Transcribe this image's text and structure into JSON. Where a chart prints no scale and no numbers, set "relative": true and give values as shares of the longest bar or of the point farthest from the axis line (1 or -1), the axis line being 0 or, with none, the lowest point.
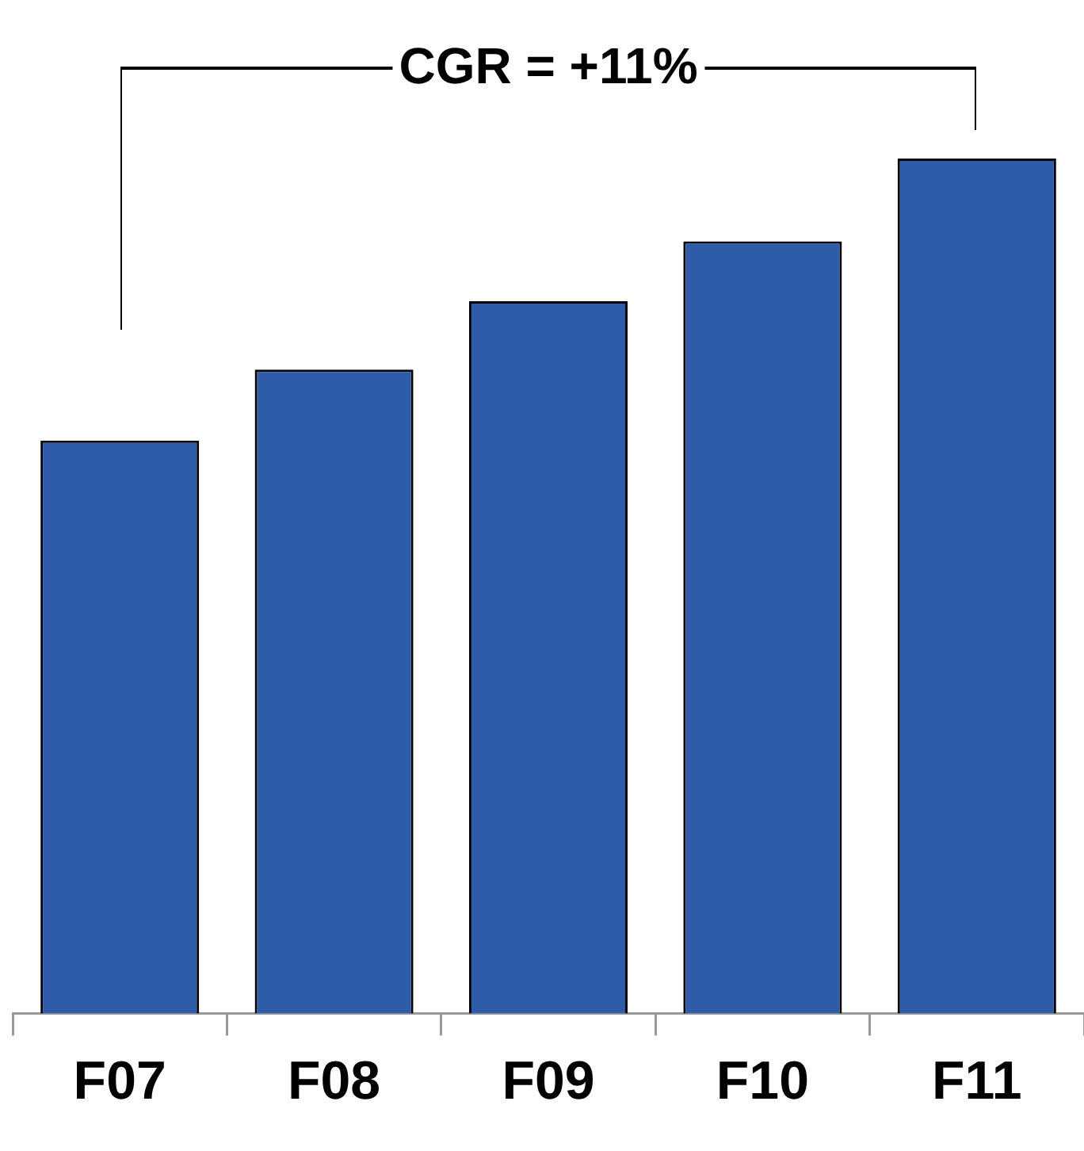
{
  "chart_data": {
    "type": "bar",
    "relative": true,
    "categories": [
      "F07",
      "F08",
      "F09",
      "F10",
      "F11"
    ],
    "values": [
      0.67,
      0.753,
      0.833,
      0.903,
      1
    ],
    "color": "#2e5ca8",
    "annotations": [
      "CGR = +11%"
    ],
    "grid": false,
    "legend": false
  }
}
